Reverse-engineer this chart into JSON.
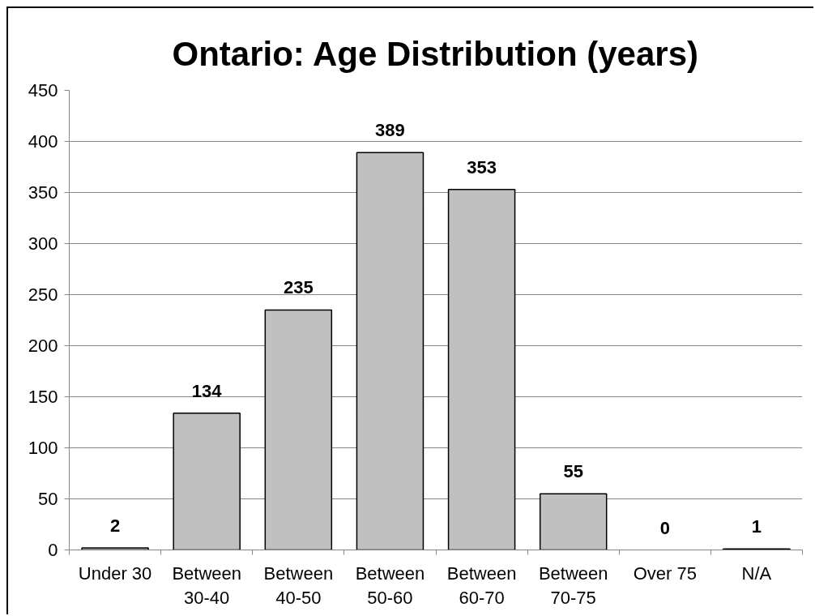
{
  "chart_data": {
    "type": "bar",
    "title": "Ontario: Age Distribution (years)",
    "categories": [
      "Under 30",
      "Between\n30-40",
      "Between\n40-50",
      "Between\n50-60",
      "Between\n60-70",
      "Between\n70-75",
      "Over 75",
      "N/A"
    ],
    "values": [
      2,
      134,
      235,
      389,
      353,
      55,
      0,
      1
    ],
    "color": "#c0c0c0",
    "ylim": [
      0,
      450
    ],
    "yticks": [
      0,
      50,
      100,
      150,
      200,
      250,
      300,
      350,
      400,
      450
    ],
    "grid": "y",
    "data_labels": true
  }
}
